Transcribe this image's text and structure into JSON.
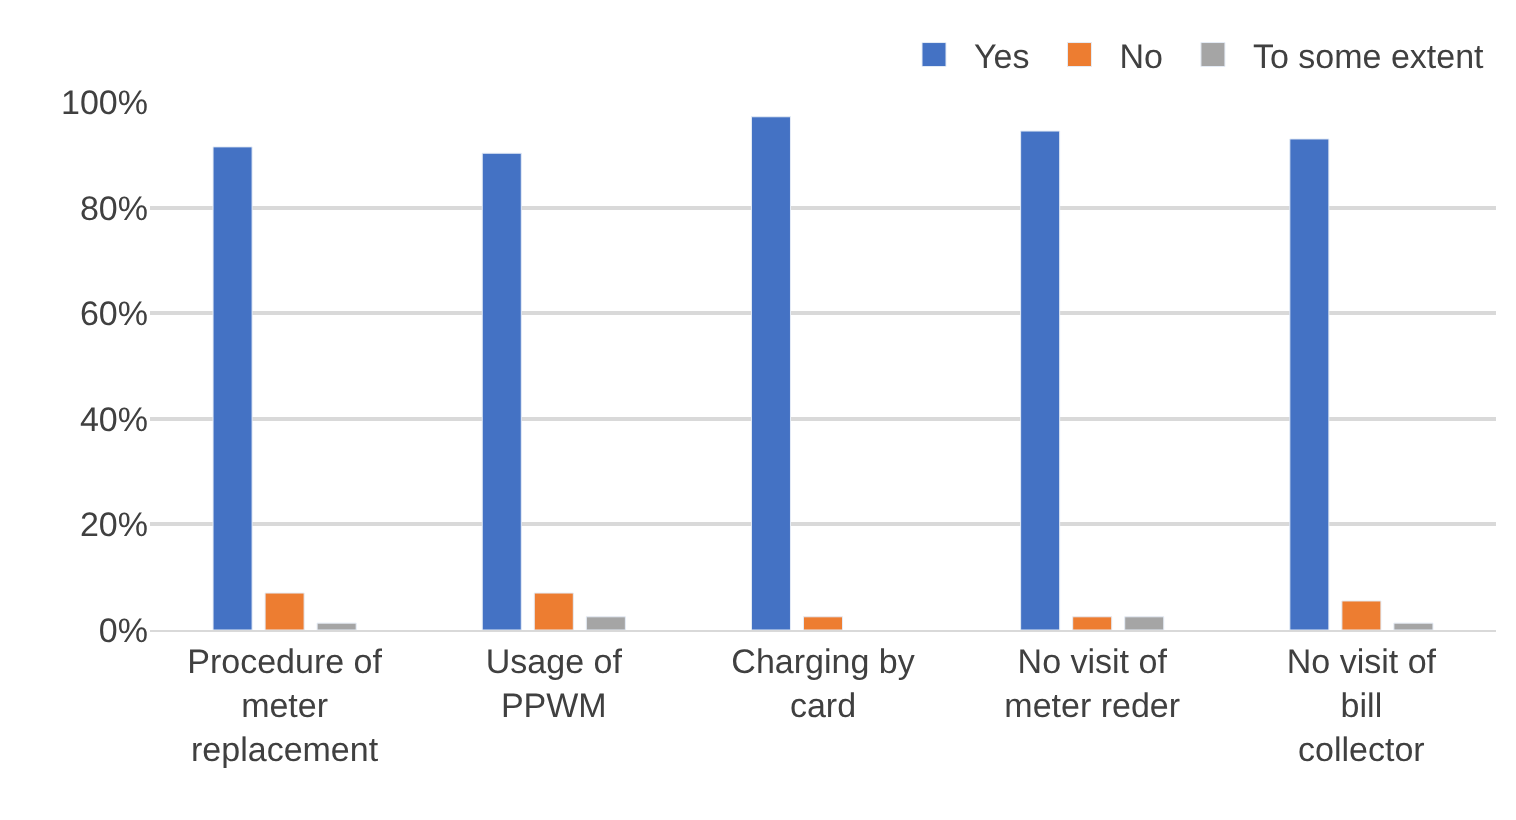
{
  "chart_data": {
    "type": "bar",
    "categories": [
      "Procedure of meter replacement",
      "Usage of PPWM",
      "Charging by card",
      "No visit of meter reder",
      "No visit of bill collector"
    ],
    "series": [
      {
        "name": "Yes",
        "color": "#4472c4",
        "values": [
          91.5,
          90.3,
          97.2,
          94.5,
          93
        ]
      },
      {
        "name": "No",
        "color": "#ed7d31",
        "values": [
          7,
          7,
          2.5,
          2.5,
          5.5
        ]
      },
      {
        "name": "To some extent",
        "color": "#a5a5a5",
        "values": [
          1.3,
          2.5,
          null,
          2.5,
          1.3
        ]
      }
    ],
    "ylim": [
      0,
      100
    ],
    "yticks": [
      {
        "value": 0,
        "label": "0%"
      },
      {
        "value": 20,
        "label": "20%"
      },
      {
        "value": 40,
        "label": "40%"
      },
      {
        "value": 60,
        "label": "60%"
      },
      {
        "value": 80,
        "label": "80%"
      },
      {
        "value": 100,
        "label": "100%"
      }
    ],
    "grid": "y",
    "legend": "top right"
  }
}
